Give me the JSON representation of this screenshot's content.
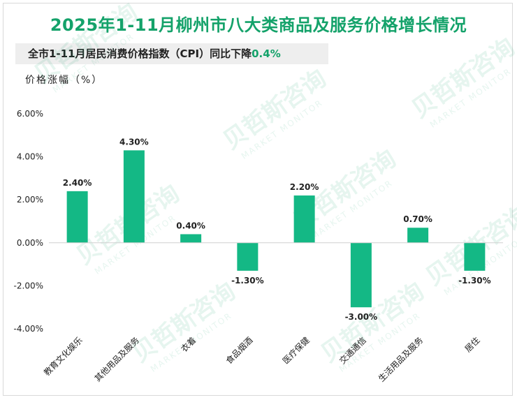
{
  "title": "2025年1-11月柳州市八大类商品及服务价格增长情况",
  "subtitle": {
    "text": "全市1-11月居民消费价格指数（CPI）同比下降",
    "highlight": "0.4%"
  },
  "watermark": {
    "cn": "贝哲斯咨询",
    "en": "MARKET MONITOR"
  },
  "colors": {
    "bar": "#14b885",
    "title": "#14a26a",
    "axis_text": "#222222"
  },
  "chart_data": {
    "type": "bar",
    "ylabel": "价格涨幅（%）",
    "categories": [
      "教育文化娱乐",
      "其他用品及服务",
      "衣着",
      "食品烟酒",
      "医疗保健",
      "交通通信",
      "生活用品及服务",
      "居住"
    ],
    "values": [
      2.4,
      4.3,
      0.4,
      -1.3,
      2.2,
      -3.0,
      0.7,
      -1.3
    ],
    "value_labels": [
      "2.40%",
      "4.30%",
      "0.40%",
      "-1.30%",
      "2.20%",
      "-3.00%",
      "0.70%",
      "-1.30%"
    ],
    "yticks": [
      6,
      4,
      2,
      0,
      -2,
      -4
    ],
    "ytick_labels": [
      "6.00%",
      "4.00%",
      "2.00%",
      "0.00%",
      "-2.00%",
      "-4.00%"
    ],
    "ylim": [
      -4,
      6
    ],
    "grid": false,
    "legend": "none"
  }
}
